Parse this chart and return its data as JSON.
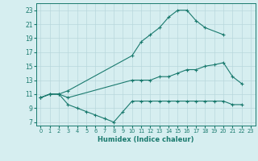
{
  "xlabel": "Humidex (Indice chaleur)",
  "ylabel": "",
  "bg_color": "#d6eef0",
  "grid_color": "#b8d8dc",
  "line_color": "#1a7a6e",
  "xlim": [
    -0.5,
    23.5
  ],
  "ylim": [
    6.5,
    24
  ],
  "xticks": [
    0,
    1,
    2,
    3,
    4,
    5,
    6,
    7,
    8,
    9,
    10,
    11,
    12,
    13,
    14,
    15,
    16,
    17,
    18,
    19,
    20,
    21,
    22,
    23
  ],
  "yticks": [
    7,
    9,
    11,
    13,
    15,
    17,
    19,
    21,
    23
  ],
  "curve1_x": [
    0,
    1,
    2,
    3,
    10,
    11,
    12,
    13,
    14,
    15,
    16,
    17,
    18,
    20
  ],
  "curve1_y": [
    10.5,
    11.0,
    11.0,
    11.5,
    16.5,
    18.5,
    19.5,
    20.5,
    22.0,
    23.0,
    23.0,
    21.5,
    20.5,
    19.5
  ],
  "curve2_x": [
    0,
    1,
    2,
    3,
    10,
    11,
    12,
    13,
    14,
    15,
    16,
    17,
    18,
    19,
    20,
    21,
    22
  ],
  "curve2_y": [
    10.5,
    11.0,
    11.0,
    10.5,
    13.0,
    13.0,
    13.0,
    13.5,
    13.5,
    14.0,
    14.5,
    14.5,
    15.0,
    15.2,
    15.5,
    13.5,
    12.5
  ],
  "curve3_x": [
    0,
    1,
    2,
    3,
    4,
    5,
    6,
    7,
    8,
    9,
    10,
    11,
    12,
    13,
    14,
    15,
    16,
    17,
    18,
    19,
    20,
    21,
    22
  ],
  "curve3_y": [
    10.5,
    11.0,
    11.0,
    9.5,
    9.0,
    8.5,
    8.0,
    7.5,
    7.0,
    8.5,
    10.0,
    10.0,
    10.0,
    10.0,
    10.0,
    10.0,
    10.0,
    10.0,
    10.0,
    10.0,
    10.0,
    9.5,
    9.5
  ]
}
